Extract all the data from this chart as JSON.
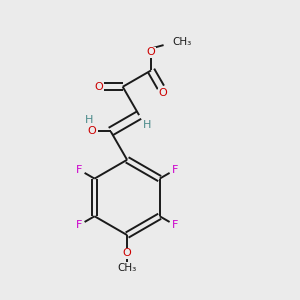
{
  "bg_color": "#ebebeb",
  "bond_color": "#1a1a1a",
  "oxygen_color": "#cc0000",
  "fluorine_color": "#cc00cc",
  "hydrogen_color": "#4a8a8a",
  "figsize": [
    3.0,
    3.0
  ],
  "dpi": 100,
  "xlim": [
    0.05,
    0.95
  ],
  "ylim": [
    0.05,
    0.95
  ]
}
